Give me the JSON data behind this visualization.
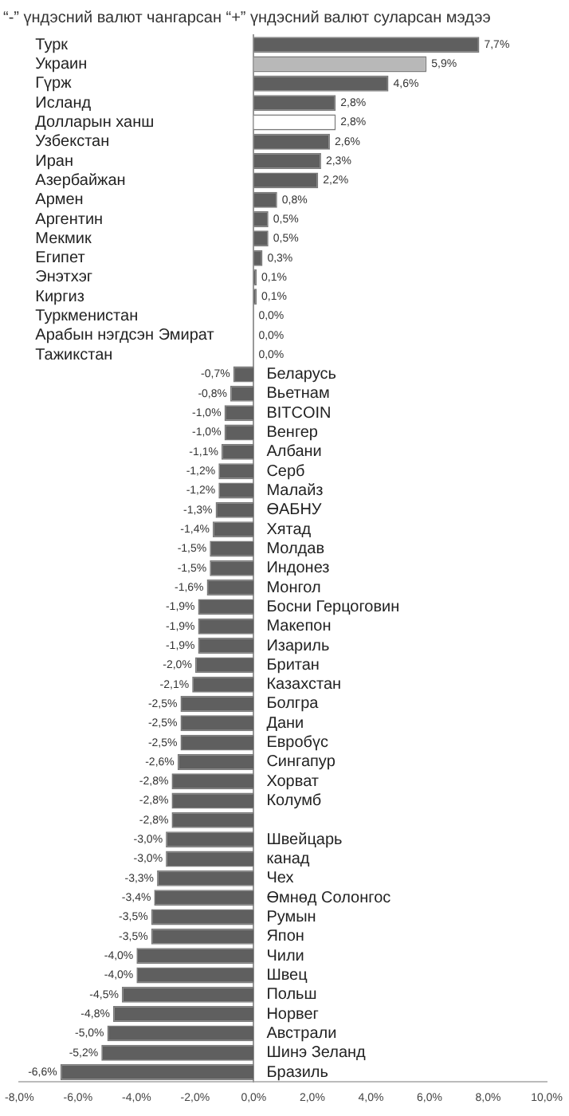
{
  "chart_data": {
    "type": "bar",
    "orientation": "horizontal",
    "title": "“-” үндэсний валют чангарсан  “+” үндэсний валют суларсан мэдээ",
    "categories": [
      "Турк",
      "Украин",
      "Гүрж",
      "Исланд",
      "Долларын ханш",
      "Узбекстан",
      "Иран",
      "Азербайжан",
      "Армен",
      "Аргентин",
      "Мекмик",
      "Египет",
      "Энэтхэг",
      "Киргиз",
      "Туркменистан",
      "Арабын нэгдсэн Эмират",
      "Тажикстан",
      "Беларусь",
      "Вьетнам",
      "BITCOIN",
      "Венгер",
      "Албани",
      "Серб",
      "Малайз",
      "ӨАБНУ",
      "Хятад",
      "Молдав",
      "Индонез",
      "Монгол",
      "Босни Герцоговин",
      "Макепон",
      "Изариль",
      "Британ",
      "Казахстан",
      "Болгра",
      "Дани",
      "Евробүс",
      "Сингапур",
      "Хорват",
      "Колумб",
      null,
      "Швейцарь",
      "канад",
      "Чех",
      "Өмнөд Солонгос",
      "Румын",
      "Япон",
      "Чили",
      "Швец",
      "Польш",
      "Норвег",
      "Австрали",
      "Шинэ Зеланд",
      "Бразиль"
    ],
    "values": [
      7.7,
      5.9,
      4.6,
      2.8,
      2.8,
      2.6,
      2.3,
      2.2,
      0.8,
      0.5,
      0.5,
      0.3,
      0.1,
      0.1,
      0.0,
      0.0,
      0.0,
      -0.7,
      -0.8,
      -1.0,
      -1.0,
      -1.1,
      -1.2,
      -1.2,
      -1.3,
      -1.4,
      -1.5,
      -1.5,
      -1.6,
      -1.9,
      -1.9,
      -1.9,
      -2.0,
      -2.1,
      -2.5,
      -2.5,
      -2.5,
      -2.6,
      -2.8,
      -2.8,
      -2.8,
      -3.0,
      -3.0,
      -3.3,
      -3.4,
      -3.5,
      -3.5,
      -4.0,
      -4.0,
      -4.5,
      -4.8,
      -5.0,
      -5.2,
      -6.6
    ],
    "value_labels": [
      "7,7%",
      "5,9%",
      "4,6%",
      "2,8%",
      "2,8%",
      "2,6%",
      "2,3%",
      "2,2%",
      "0,8%",
      "0,5%",
      "0,5%",
      "0,3%",
      "0,1%",
      "0,1%",
      "0,0%",
      "0,0%",
      "0,0%",
      "-0,7%",
      "-0,8%",
      "-1,0%",
      "-1,0%",
      "-1,1%",
      "-1,2%",
      "-1,2%",
      "-1,3%",
      "-1,4%",
      "-1,5%",
      "-1,5%",
      "-1,6%",
      "-1,9%",
      "-1,9%",
      "-1,9%",
      "-2,0%",
      "-2,1%",
      "-2,5%",
      "-2,5%",
      "-2,5%",
      "-2,6%",
      "-2,8%",
      "-2,8%",
      "-2,8%",
      "-3,0%",
      "-3,0%",
      "-3,3%",
      "-3,4%",
      "-3,5%",
      "-3,5%",
      "-4,0%",
      "-4,0%",
      "-4,5%",
      "-4,8%",
      "-5,0%",
      "-5,2%",
      "-6,6%"
    ],
    "colors": [
      "#5f5f5f",
      "#b8b8b8",
      "#5f5f5f",
      "#5f5f5f",
      "#ffffff",
      "#5f5f5f",
      "#5f5f5f",
      "#5f5f5f",
      "#5f5f5f",
      "#5f5f5f",
      "#5f5f5f",
      "#5f5f5f",
      "#5f5f5f",
      "#5f5f5f",
      "#5f5f5f",
      "#5f5f5f",
      "#5f5f5f",
      "#5f5f5f",
      "#5f5f5f",
      "#5f5f5f",
      "#5f5f5f",
      "#5f5f5f",
      "#5f5f5f",
      "#5f5f5f",
      "#5f5f5f",
      "#5f5f5f",
      "#5f5f5f",
      "#5f5f5f",
      "#5f5f5f",
      "#5f5f5f",
      "#5f5f5f",
      "#5f5f5f",
      "#5f5f5f",
      "#5f5f5f",
      "#5f5f5f",
      "#5f5f5f",
      "#5f5f5f",
      "#5f5f5f",
      "#5f5f5f",
      "#5f5f5f",
      "#5f5f5f",
      "#5f5f5f",
      "#5f5f5f",
      "#5f5f5f",
      "#5f5f5f",
      "#5f5f5f",
      "#5f5f5f",
      "#5f5f5f",
      "#5f5f5f",
      "#5f5f5f",
      "#5f5f5f",
      "#5f5f5f",
      "#5f5f5f",
      "#5f5f5f"
    ],
    "xlim": [
      -8,
      10
    ],
    "xticks": [
      {
        "value": -8,
        "label": "-8,0%"
      },
      {
        "value": -6,
        "label": "-6,0%"
      },
      {
        "value": -4,
        "label": "-4,0%"
      },
      {
        "value": -2,
        "label": "-2,0%"
      },
      {
        "value": 0,
        "label": "0,0%"
      },
      {
        "value": 2,
        "label": "2,0%"
      },
      {
        "value": 4,
        "label": "4,0%"
      },
      {
        "value": 6,
        "label": "6,0%"
      },
      {
        "value": 8,
        "label": "8,0%"
      },
      {
        "value": 10,
        "label": "10,0%"
      }
    ],
    "grid": false,
    "legend": false
  }
}
